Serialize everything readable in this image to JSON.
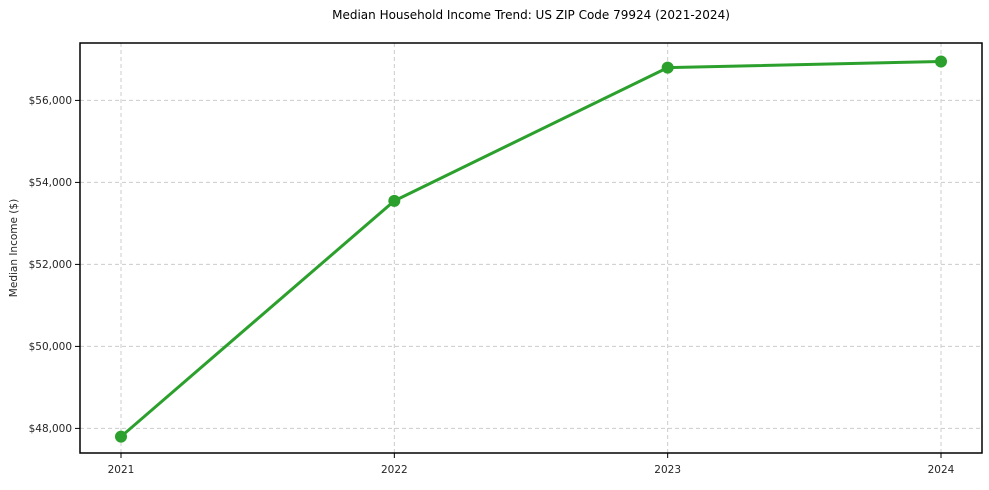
{
  "chart_data": {
    "type": "line",
    "title": "Median Household Income Trend: US ZIP Code 79924 (2021-2024)",
    "xlabel": "",
    "ylabel": "Median Income ($)",
    "categories": [
      "2021",
      "2022",
      "2023",
      "2024"
    ],
    "series": [
      {
        "name": "Median Household Income",
        "values": [
          47800,
          53550,
          56800,
          56950
        ]
      }
    ],
    "yticks": [
      48000,
      50000,
      52000,
      54000,
      56000
    ],
    "ytick_labels": [
      "$48,000",
      "$50,000",
      "$52,000",
      "$54,000",
      "$56,000"
    ],
    "ylim": [
      47400,
      57400
    ],
    "grid": true,
    "legend": "none",
    "line_color": "#2ca02c",
    "marker_color": "#2ca02c",
    "grid_color": "#cccccc",
    "spine_color": "#000000",
    "tick_label_color": "#262626",
    "title_color": "#000000"
  }
}
